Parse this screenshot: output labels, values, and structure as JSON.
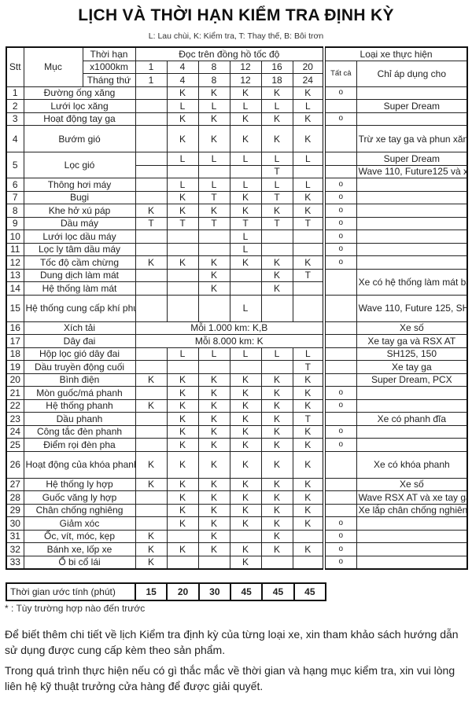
{
  "title": "LỊCH VÀ THỜI HẠN KIỂM TRA ĐỊNH KỲ",
  "legend": "L: Lau chùi, K: Kiểm tra, T: Thay thế, B: Bôi trơn",
  "header": {
    "stt": "Stt",
    "item": "Mục",
    "period": "Thời hạn",
    "km_label": "x1000km",
    "month_label": "Tháng thứ",
    "odometer": "Đọc trên đồng hồ tốc độ",
    "vehicle_type": "Loại xe thực hiện",
    "all": "Tất cả",
    "only_for": "Chỉ áp dụng cho",
    "km": [
      "1",
      "4",
      "8",
      "12",
      "16",
      "20"
    ],
    "months": [
      "1",
      "4",
      "8",
      "12",
      "18",
      "24"
    ]
  },
  "rows": [
    {
      "stt": "1",
      "item": "Đường ống xăng",
      "v": [
        "",
        "K",
        "K",
        "K",
        "K",
        "K"
      ],
      "all": "o",
      "applies": ""
    },
    {
      "stt": "2",
      "item": "Lưới lọc xăng",
      "v": [
        "",
        "L",
        "L",
        "L",
        "L",
        "L"
      ],
      "all": "",
      "applies": "Super Dream"
    },
    {
      "stt": "3",
      "item": "Hoạt động tay ga",
      "v": [
        "",
        "K",
        "K",
        "K",
        "K",
        "K"
      ],
      "all": "o",
      "applies": ""
    },
    {
      "stt": "4",
      "item": "Bướm gió",
      "v": [
        "",
        "K",
        "K",
        "K",
        "K",
        "K"
      ],
      "all": "",
      "applies": "Trừ xe tay ga và phun xăng điện tử",
      "tall": true
    },
    {
      "stt": "5",
      "item": "Lọc gió",
      "v": [
        "",
        "L",
        "L",
        "L",
        "L",
        "L"
      ],
      "all": "",
      "applies": "Super Dream",
      "sub": {
        "v": [
          "",
          "",
          "",
          "",
          "T",
          ""
        ],
        "all": "",
        "applies": "Wave 110, Future125 và xe tay ga"
      }
    },
    {
      "stt": "6",
      "item": "Thông hơi máy",
      "v": [
        "",
        "L",
        "L",
        "L",
        "L",
        "L"
      ],
      "all": "o",
      "applies": ""
    },
    {
      "stt": "7",
      "item": "Bugi",
      "v": [
        "",
        "K",
        "T",
        "K",
        "T",
        "K"
      ],
      "all": "o",
      "applies": ""
    },
    {
      "stt": "8",
      "item": "Khe hở xú páp",
      "v": [
        "K",
        "K",
        "K",
        "K",
        "K",
        "K"
      ],
      "all": "o",
      "applies": ""
    },
    {
      "stt": "9",
      "item": "Dầu máy",
      "v": [
        "T",
        "T",
        "T",
        "T",
        "T",
        "T"
      ],
      "all": "o",
      "applies": ""
    },
    {
      "stt": "10",
      "item": "Lưới lọc dầu máy",
      "v": [
        "",
        "",
        "",
        "L",
        "",
        ""
      ],
      "all": "o",
      "applies": ""
    },
    {
      "stt": "11",
      "item": "Lọc ly tâm dầu máy",
      "v": [
        "",
        "",
        "",
        "L",
        "",
        ""
      ],
      "all": "o",
      "applies": ""
    },
    {
      "stt": "12",
      "item": "Tốc độ cầm chừng",
      "v": [
        "K",
        "K",
        "K",
        "K",
        "K",
        "K"
      ],
      "all": "o",
      "applies": ""
    },
    {
      "stt": "13",
      "item": "Dung dịch làm mát",
      "v": [
        "",
        "",
        "K",
        "",
        "K",
        "T"
      ],
      "all": "",
      "applies": "Xe có hệ thống làm mát bằng dung dịch",
      "merge_next": true
    },
    {
      "stt": "14",
      "item": "Hệ thống làm mát",
      "v": [
        "",
        "",
        "K",
        "",
        "K",
        ""
      ]
    },
    {
      "stt": "15",
      "item": "Hệ thống cung cấp khí phụ",
      "v": [
        "",
        "",
        "",
        "L",
        "",
        ""
      ],
      "all": "",
      "applies": "Wave 110, Future 125, SH125,150",
      "tall": true
    },
    {
      "stt": "16",
      "item": "Xích tải",
      "span": "Mỗi 1.000 km: K,B",
      "all": "",
      "applies": "Xe số"
    },
    {
      "stt": "17",
      "item": "Dây đai",
      "span": "Mỗi 8.000 km: K",
      "all": "",
      "applies": "Xe tay ga và RSX AT"
    },
    {
      "stt": "18",
      "item": "Hộp lọc gió dây đai",
      "v": [
        "",
        "L",
        "L",
        "L",
        "L",
        "L"
      ],
      "all": "",
      "applies": "SH125, 150"
    },
    {
      "stt": "19",
      "item": "Dầu truyền động cuối",
      "v": [
        "",
        "",
        "",
        "",
        "",
        "T"
      ],
      "all": "",
      "applies": "Xe tay ga"
    },
    {
      "stt": "20",
      "item": "Bình điện",
      "v": [
        "K",
        "K",
        "K",
        "K",
        "K",
        "K"
      ],
      "all": "",
      "applies": "Super Dream, PCX"
    },
    {
      "stt": "21",
      "item": "Mòn guốc/má phanh",
      "v": [
        "",
        "K",
        "K",
        "K",
        "K",
        "K"
      ],
      "all": "o",
      "applies": ""
    },
    {
      "stt": "22",
      "item": "Hệ thống phanh",
      "v": [
        "K",
        "K",
        "K",
        "K",
        "K",
        "K"
      ],
      "all": "o",
      "applies": ""
    },
    {
      "stt": "23",
      "item": "Dầu phanh",
      "v": [
        "",
        "K",
        "K",
        "K",
        "K",
        "T"
      ],
      "all": "",
      "applies": "Xe có phanh đĩa"
    },
    {
      "stt": "24",
      "item": "Công tắc đèn phanh",
      "v": [
        "",
        "K",
        "K",
        "K",
        "K",
        "K"
      ],
      "all": "o",
      "applies": ""
    },
    {
      "stt": "25",
      "item": "Điểm rọi đèn pha",
      "v": [
        "",
        "K",
        "K",
        "K",
        "K",
        "K"
      ],
      "all": "o",
      "applies": ""
    },
    {
      "stt": "26",
      "item": "Hoạt động của khóa phanh",
      "v": [
        "K",
        "K",
        "K",
        "K",
        "K",
        "K"
      ],
      "all": "",
      "applies": "Xe có khóa phanh",
      "tall": true
    },
    {
      "stt": "27",
      "item": "Hệ thống ly hợp",
      "v": [
        "K",
        "K",
        "K",
        "K",
        "K",
        "K"
      ],
      "all": "",
      "applies": "Xe số"
    },
    {
      "stt": "28",
      "item": "Guốc văng ly hợp",
      "v": [
        "",
        "K",
        "K",
        "K",
        "K",
        "K"
      ],
      "all": "",
      "applies": "Wave RSX AT và xe tay ga"
    },
    {
      "stt": "29",
      "item": "Chân chống nghiêng",
      "v": [
        "",
        "K",
        "K",
        "K",
        "K",
        "K"
      ],
      "all": "",
      "applies": "Xe lắp chân chống nghiêng"
    },
    {
      "stt": "30",
      "item": "Giảm xóc",
      "v": [
        "",
        "K",
        "K",
        "K",
        "K",
        "K"
      ],
      "all": "o",
      "applies": ""
    },
    {
      "stt": "31",
      "item": "Ốc, vít, móc, kẹp",
      "v": [
        "K",
        "",
        "K",
        "",
        "K",
        ""
      ],
      "all": "o",
      "applies": ""
    },
    {
      "stt": "32",
      "item": "Bánh xe, lốp xe",
      "v": [
        "K",
        "K",
        "K",
        "K",
        "K",
        "K"
      ],
      "all": "o",
      "applies": ""
    },
    {
      "stt": "33",
      "item": "Ổ bi cổ lái",
      "v": [
        "K",
        "",
        "",
        "K",
        "",
        ""
      ],
      "all": "o",
      "applies": ""
    }
  ],
  "time": {
    "label": "Thời gian ước tính (phút)",
    "values": [
      "15",
      "20",
      "30",
      "45",
      "45",
      "45"
    ]
  },
  "note": "* : Tùy trường hợp nào đến trước",
  "paragraphs": [
    "Để biết thêm chi tiết về lịch Kiểm tra định kỳ của từng loại xe, xin tham khảo sách hướng dẫn sử dụng được cung cấp kèm theo sản phẩm.",
    "Trong quá trình thực hiện nếu có gì thắc mắc về thời gian và hạng mục kiểm tra, xin vui lòng liên hệ kỹ thuật trưởng cửa hàng để được giải quyết."
  ]
}
